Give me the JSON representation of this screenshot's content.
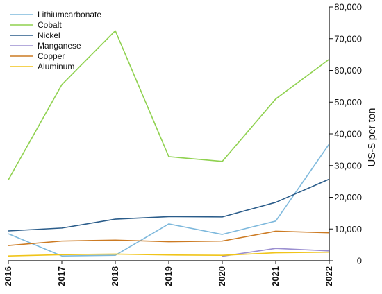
{
  "chart_data": {
    "type": "line",
    "x": [
      2016,
      2017,
      2018,
      2019,
      2020,
      2021,
      2022
    ],
    "x_tick_labels": [
      "2016",
      "2017",
      "2018",
      "2019",
      "2020",
      "2021",
      "2022"
    ],
    "ylabel": "US-$ per ton",
    "ylim": [
      0,
      80000
    ],
    "y_ticks": [
      0,
      10000,
      20000,
      30000,
      40000,
      50000,
      60000,
      70000,
      80000
    ],
    "y_tick_labels": [
      "0",
      "10,000",
      "20,000",
      "30,000",
      "40,000",
      "50,000",
      "60,000",
      "70,000",
      "80,000"
    ],
    "y_axis_side": "right",
    "grid": false,
    "legend_position": "top-left",
    "series": [
      {
        "name": "Lithiumcarbonate",
        "color": "#7db8dc",
        "values": [
          8500,
          1500,
          1700,
          11600,
          8300,
          12500,
          36800
        ]
      },
      {
        "name": "Cobalt",
        "color": "#8fd14f",
        "values": [
          25500,
          55500,
          72500,
          32800,
          31300,
          51000,
          63500
        ]
      },
      {
        "name": "Nickel",
        "color": "#2a5c8a",
        "values": [
          9400,
          10300,
          13100,
          13900,
          13800,
          18400,
          25700
        ]
      },
      {
        "name": "Manganese",
        "color": "#9b8fd0",
        "values": [
          null,
          null,
          null,
          null,
          1400,
          3900,
          3100
        ]
      },
      {
        "name": "Copper",
        "color": "#cc7a22",
        "values": [
          4800,
          6200,
          6500,
          6000,
          6200,
          9300,
          8800
        ]
      },
      {
        "name": "Aluminum",
        "color": "#f0c419",
        "values": [
          1500,
          1900,
          2100,
          1800,
          1700,
          2500,
          2700
        ]
      }
    ]
  }
}
